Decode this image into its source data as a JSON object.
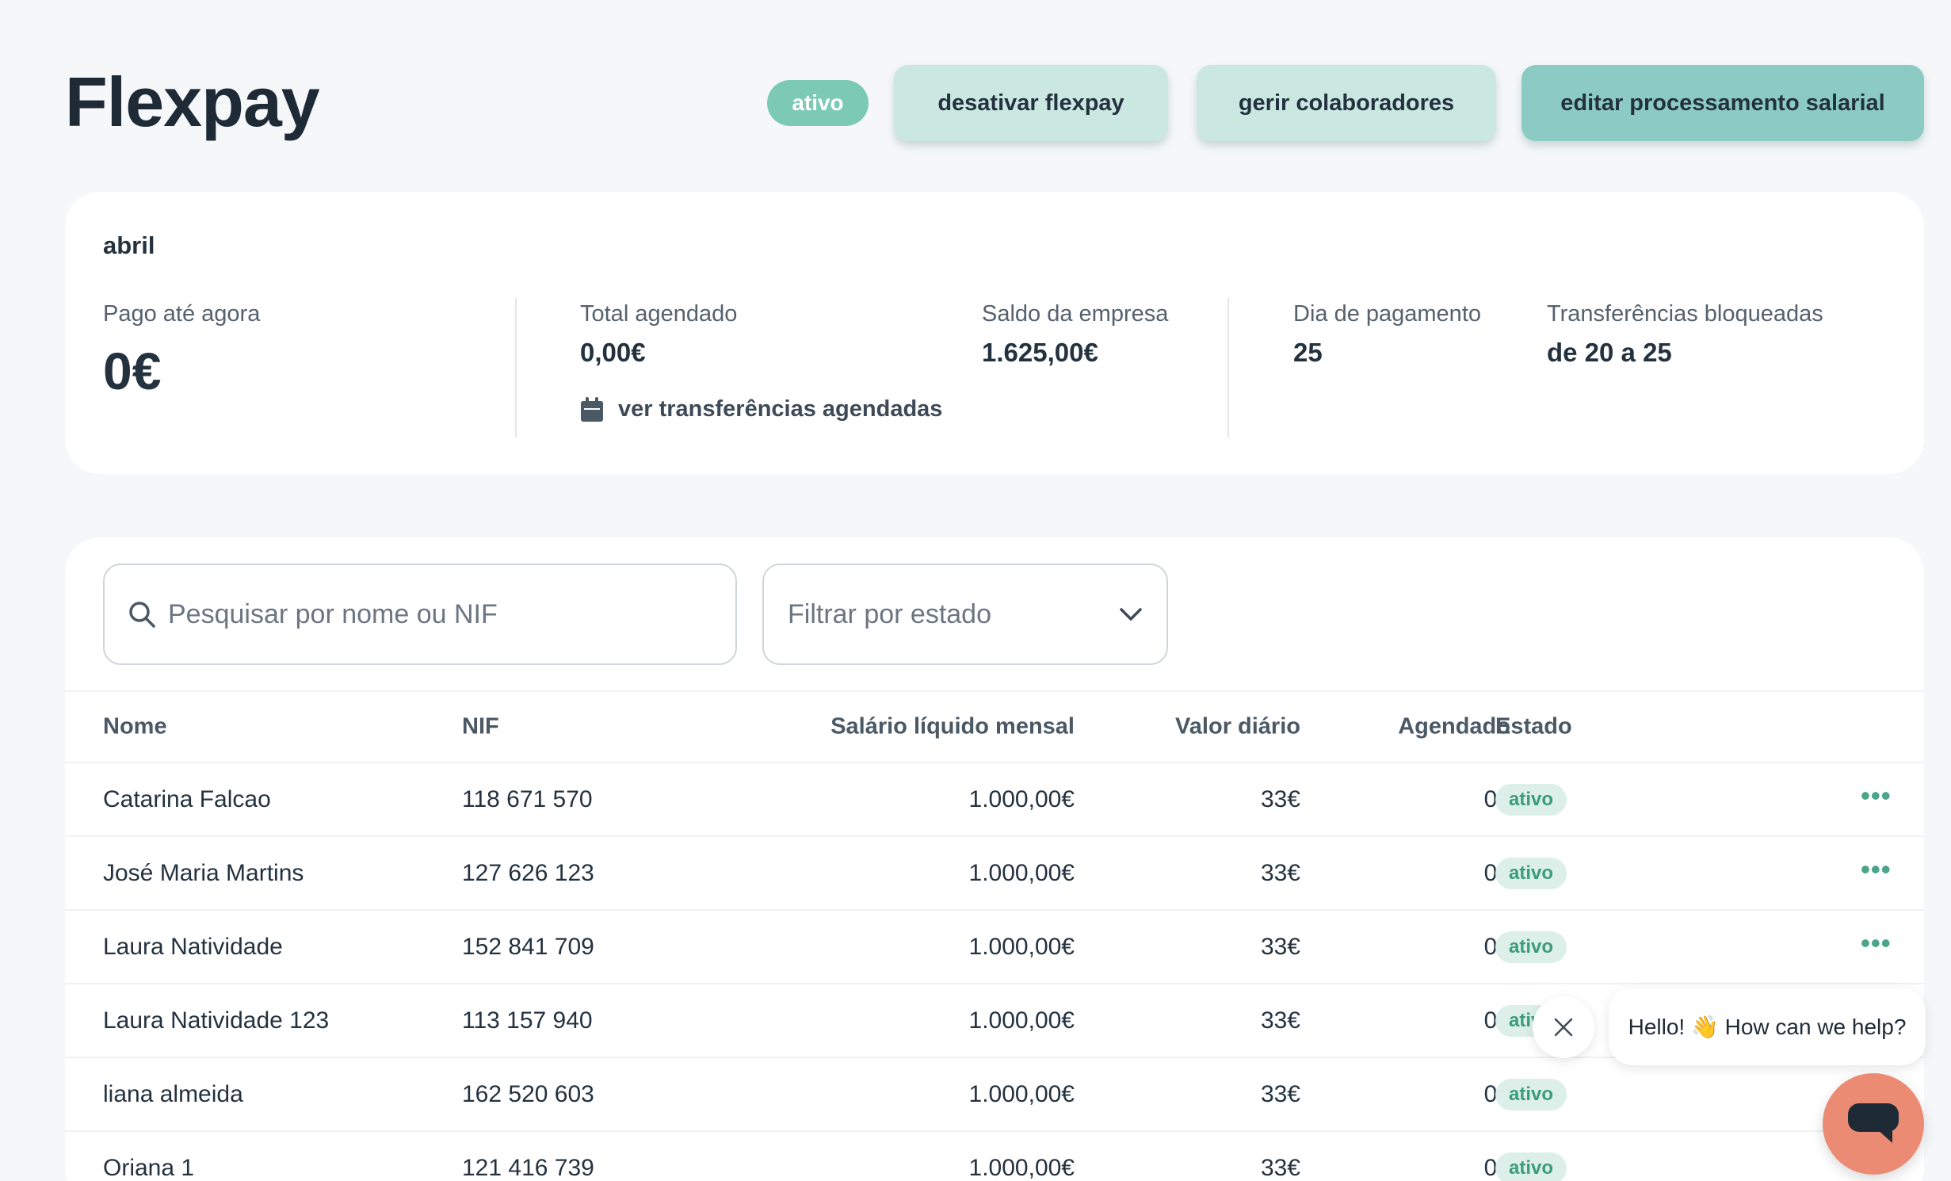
{
  "header": {
    "title": "Flexpay",
    "status": "ativo",
    "buttons": {
      "deactivate": "desativar flexpay",
      "manage": "gerir colaboradores",
      "edit": "editar processamento salarial"
    }
  },
  "summary": {
    "month": "abril",
    "paid": {
      "label": "Pago até agora",
      "value": "0€"
    },
    "scheduled": {
      "label": "Total agendado",
      "value": "0,00€"
    },
    "balance": {
      "label": "Saldo da empresa",
      "value": "1.625,00€"
    },
    "payday": {
      "label": "Dia de pagamento",
      "value": "25"
    },
    "blocked": {
      "label": "Transferências bloqueadas",
      "value": "de 20 a 25"
    },
    "scheduled_link": "ver transferências agendadas"
  },
  "filters": {
    "search_placeholder": "Pesquisar por nome ou NIF",
    "status_placeholder": "Filtrar por estado"
  },
  "table": {
    "columns": {
      "name": "Nome",
      "nif": "NIF",
      "salary": "Salário líquido mensal",
      "daily": "Valor diário",
      "scheduled": "Agendado",
      "status": "Estado"
    },
    "rows": [
      {
        "name": "Catarina Falcao",
        "nif": "118 671 570",
        "salary": "1.000,00€",
        "daily": "33€",
        "scheduled": "0€",
        "status": "ativo"
      },
      {
        "name": "José Maria Martins",
        "nif": "127 626 123",
        "salary": "1.000,00€",
        "daily": "33€",
        "scheduled": "0€",
        "status": "ativo"
      },
      {
        "name": "Laura Natividade",
        "nif": "152 841 709",
        "salary": "1.000,00€",
        "daily": "33€",
        "scheduled": "0€",
        "status": "ativo"
      },
      {
        "name": "Laura Natividade 123",
        "nif": "113 157 940",
        "salary": "1.000,00€",
        "daily": "33€",
        "scheduled": "0€",
        "status": "ativo"
      },
      {
        "name": "liana almeida",
        "nif": "162 520 603",
        "salary": "1.000,00€",
        "daily": "33€",
        "scheduled": "0€",
        "status": "ativo"
      },
      {
        "name": "Oriana 1",
        "nif": "121 416 739",
        "salary": "1.000,00€",
        "daily": "33€",
        "scheduled": "0€",
        "status": "ativo"
      }
    ],
    "more_glyph": "•••"
  },
  "chat": {
    "greeting": "Hello! 👋 How can we help?"
  },
  "colors": {
    "accent": "#7cc9b5",
    "button_light": "#cbe7e2",
    "button_primary": "#8ccbc3",
    "badge_bg": "#dcefe9",
    "badge_text": "#3c9c7d",
    "chat_launcher": "#ec8b74"
  }
}
